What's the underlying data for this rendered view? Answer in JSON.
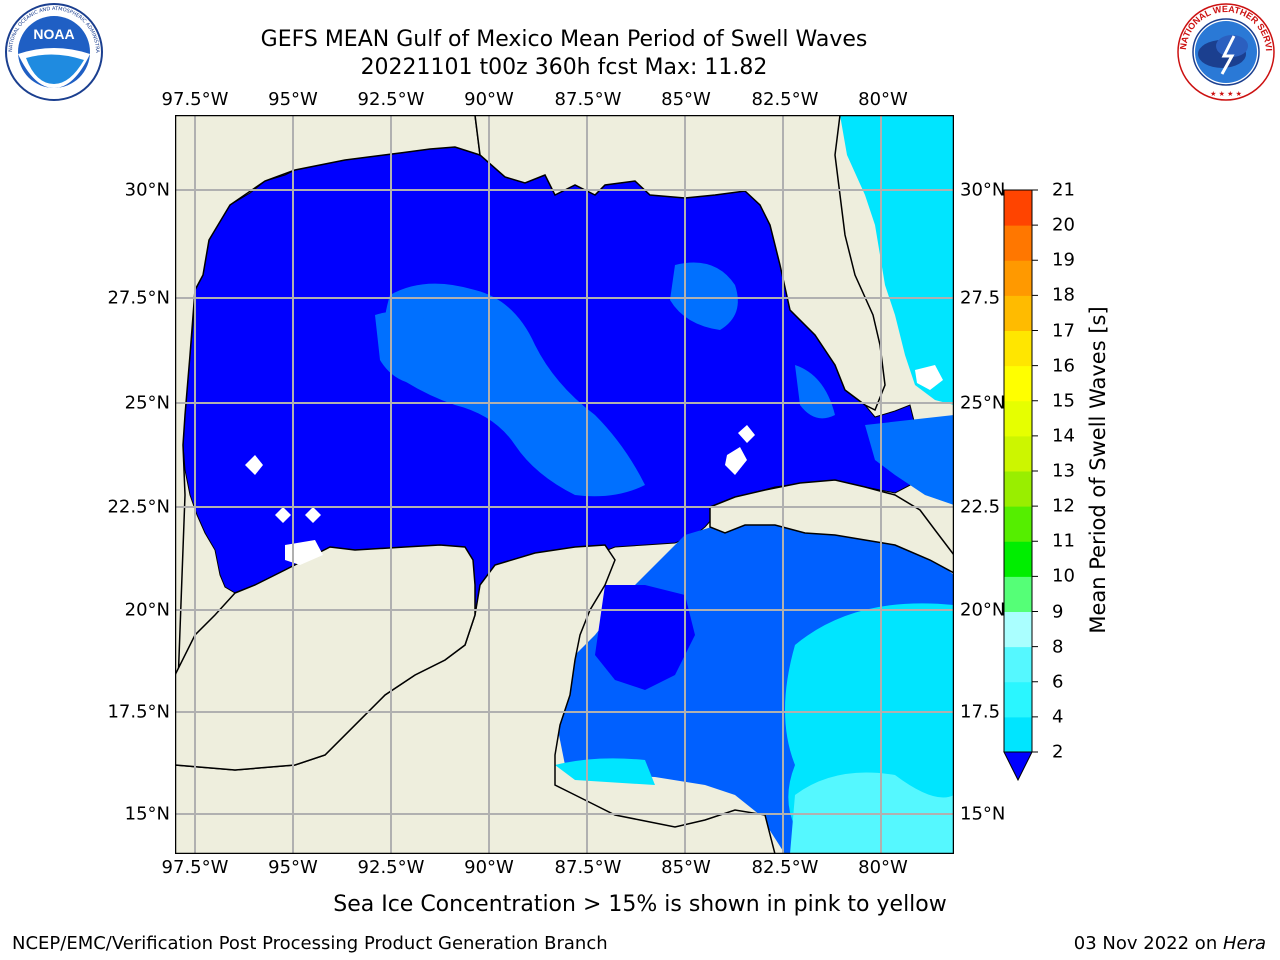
{
  "header": {
    "title": "GEFS MEAN Gulf of Mexico Mean Period of Swell Waves",
    "subtitle": "20221101 t00z 360h fcst   Max: 11.82"
  },
  "logos": {
    "left": {
      "name": "noaa-logo",
      "text": "NOAA",
      "ring_text": "NATIONAL OCEANIC AND ATMOSPHERIC ADMINISTRATION · U.S. DEPARTMENT OF COMMERCE"
    },
    "right": {
      "name": "nws-logo",
      "ring_text": "NATIONAL WEATHER SERVICE"
    }
  },
  "map": {
    "lon_ticks": [
      "97.5°W",
      "95°W",
      "92.5°W",
      "90°W",
      "87.5°W",
      "85°W",
      "82.5°W",
      "80°W"
    ],
    "lat_ticks_left": [
      "30°N",
      "27.5°N",
      "25°N",
      "22.5°N",
      "20°N",
      "17.5°N",
      "15°N"
    ],
    "lat_ticks_right": [
      "30°N",
      "27.5",
      "25°N",
      "22.5",
      "20°N",
      "17.5",
      "15°N"
    ],
    "extent": {
      "lon_min": -98,
      "lon_max": -78.2,
      "lat_min": 14.0,
      "lat_max": 31.8
    },
    "land_color": "#eeeedd",
    "grid_color": "#b0b0b0"
  },
  "colorbar": {
    "label": "Mean Period of Swell Waves [s]",
    "ticks": [
      "2",
      "4",
      "6",
      "8",
      "9",
      "10",
      "11",
      "12",
      "13",
      "14",
      "15",
      "16",
      "17",
      "18",
      "19",
      "20",
      "21"
    ],
    "colors": [
      "#0055ff",
      "#00e5ff",
      "#2af6ff",
      "#55f8ff",
      "#aaffff",
      "#55ff77",
      "#00ee00",
      "#55ee00",
      "#99ee00",
      "#ccf600",
      "#e6ff00",
      "#ffff00",
      "#ffe600",
      "#ffbb00",
      "#ff9900",
      "#ff7700",
      "#ff4400",
      "#ff0000"
    ],
    "under_color": "#0000ff"
  },
  "note": "Sea Ice Concentration > 15% is shown in pink to yellow",
  "footer": {
    "left": "NCEP/EMC/Verification Post Processing Product Generation Branch",
    "date": "03 Nov 2022 on ",
    "machine": "Hera"
  }
}
